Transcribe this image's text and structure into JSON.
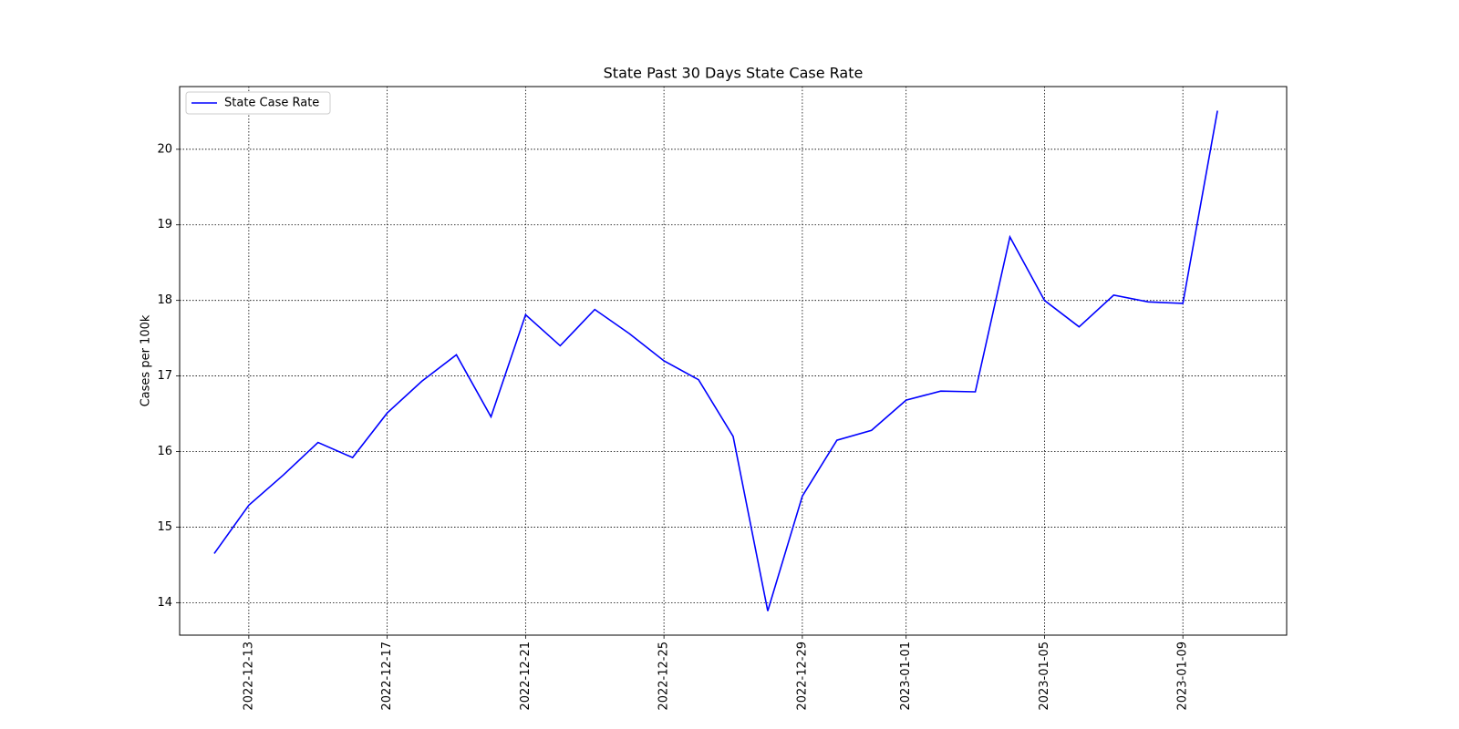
{
  "chart_data": {
    "type": "line",
    "title": "State Past 30 Days  State Case Rate",
    "y_label": "Cases per 100k",
    "x": [
      "2022-12-12",
      "2022-12-13",
      "2022-12-14",
      "2022-12-15",
      "2022-12-16",
      "2022-12-17",
      "2022-12-18",
      "2022-12-19",
      "2022-12-20",
      "2022-12-21",
      "2022-12-22",
      "2022-12-23",
      "2022-12-24",
      "2022-12-25",
      "2022-12-26",
      "2022-12-27",
      "2022-12-28",
      "2022-12-29",
      "2022-12-30",
      "2022-12-31",
      "2023-01-01",
      "2023-01-02",
      "2023-01-03",
      "2023-01-04",
      "2023-01-05",
      "2023-01-06",
      "2023-01-07",
      "2023-01-08",
      "2023-01-09",
      "2023-01-10"
    ],
    "series": [
      {
        "name": "State Case Rate",
        "color": "#0000ff",
        "values": [
          14.65,
          15.29,
          15.69,
          16.12,
          15.92,
          16.51,
          16.93,
          17.28,
          16.46,
          17.81,
          17.4,
          17.88,
          17.56,
          17.2,
          16.95,
          16.2,
          13.89,
          15.41,
          16.15,
          16.28,
          16.68,
          16.8,
          16.79,
          18.84,
          18.0,
          17.65,
          18.07,
          17.98,
          17.96,
          20.51
        ]
      }
    ],
    "xlim": [
      "2022-12-11",
      "2023-01-12"
    ],
    "xticks": [
      "2022-12-13",
      "2022-12-17",
      "2022-12-21",
      "2022-12-25",
      "2022-12-29",
      "2023-01-01",
      "2023-01-05",
      "2023-01-09"
    ],
    "ylim": [
      13.57,
      20.83
    ],
    "yticks": [
      14,
      15,
      16,
      17,
      18,
      19,
      20
    ],
    "grid": true,
    "legend": "upper-left"
  }
}
